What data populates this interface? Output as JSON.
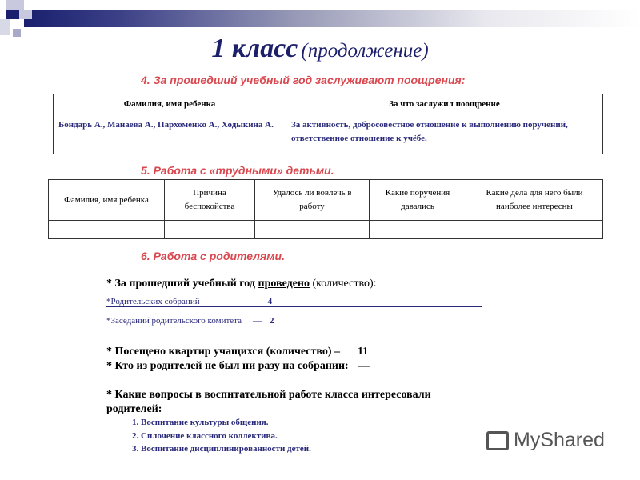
{
  "title": {
    "main": "1 класс",
    "sub": "(продолжение)"
  },
  "section4": {
    "heading": "4. За прошедший учебный год заслуживают поощрения:",
    "headers": [
      "Фамилия, имя ребенка",
      "За что заслужил поощрение"
    ],
    "row": [
      "Бондарь А., Манаева А., Пархоменко А., Ходыкина А.",
      "За  активность, добросовестное отношение к выполнению поручений, ответственное отношение к учёбе."
    ]
  },
  "section5": {
    "heading": "5. Работа с «трудными» детьми.",
    "headers": [
      "Фамилия, имя ребенка",
      "Причина беспокойства",
      "Удалось ли вовлечь в работу",
      "Какие поручения давались",
      "Какие дела для него были наиболее интересны"
    ],
    "row": [
      "—",
      "—",
      "—",
      "—",
      "—"
    ]
  },
  "section6": {
    "heading": "6. Работа с родителями.",
    "held_prefix": "* За прошедший учебный год ",
    "held_word": "проведено",
    "held_suffix": " (количество):",
    "meetings_label": "*Родительских собраний",
    "meetings_dash": "—",
    "meetings_value": "4",
    "committee_label": "*Заседаний родительского комитета",
    "committee_dash": "—",
    "committee_value": "2",
    "visits_label": "*  Посещено квартир учащихся (количество) –",
    "visits_value": "11",
    "absent_label": "*  Кто из родителей не был ни разу на собрании:",
    "absent_value": "—",
    "questions_label": "*  Какие вопросы в воспитательной работе класса интересовали родителей:",
    "questions": [
      "1. Воспитание культуры общения.",
      "2. Сплочение классного коллектива.",
      "3. Воспитание дисциплинированности детей."
    ]
  },
  "watermark": "MyShared"
}
